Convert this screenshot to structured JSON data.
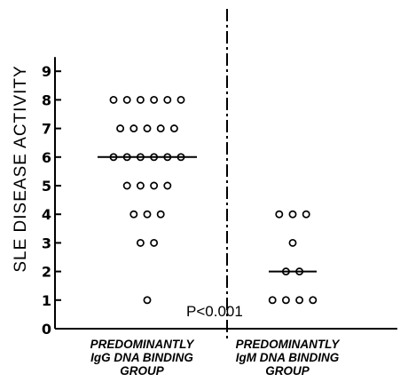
{
  "chart_data": {
    "type": "scatter",
    "title": "",
    "ylabel": "SLE DISEASE ACTIVITY",
    "xlabel": "",
    "ylim": [
      0,
      9
    ],
    "yticks": [
      "0",
      "1",
      "2",
      "3",
      "4",
      "5",
      "6",
      "7",
      "8",
      "9"
    ],
    "categories": [
      "PREDOMINANTLY IgG DNA BINDING GROUP",
      "PREDOMINANTLY IgM DNA BINDING GROUP"
    ],
    "category_lines": [
      [
        "PREDOMINANTLY",
        "IgG DNA BINDING",
        "GROUP"
      ],
      [
        "PREDOMINANTLY",
        "IgM DNA BINDING",
        "GROUP"
      ]
    ],
    "series": [
      {
        "values": [
          8,
          8,
          8,
          8,
          8,
          8,
          7,
          7,
          7,
          7,
          7,
          6,
          6,
          6,
          6,
          6,
          6,
          5,
          5,
          5,
          5,
          4,
          4,
          4,
          3,
          3,
          1
        ],
        "median": 6
      },
      {
        "values": [
          4,
          4,
          4,
          3,
          2,
          2,
          1,
          1,
          1,
          1
        ],
        "median": 2
      }
    ],
    "annotation": "P<0.001",
    "grid": false
  }
}
